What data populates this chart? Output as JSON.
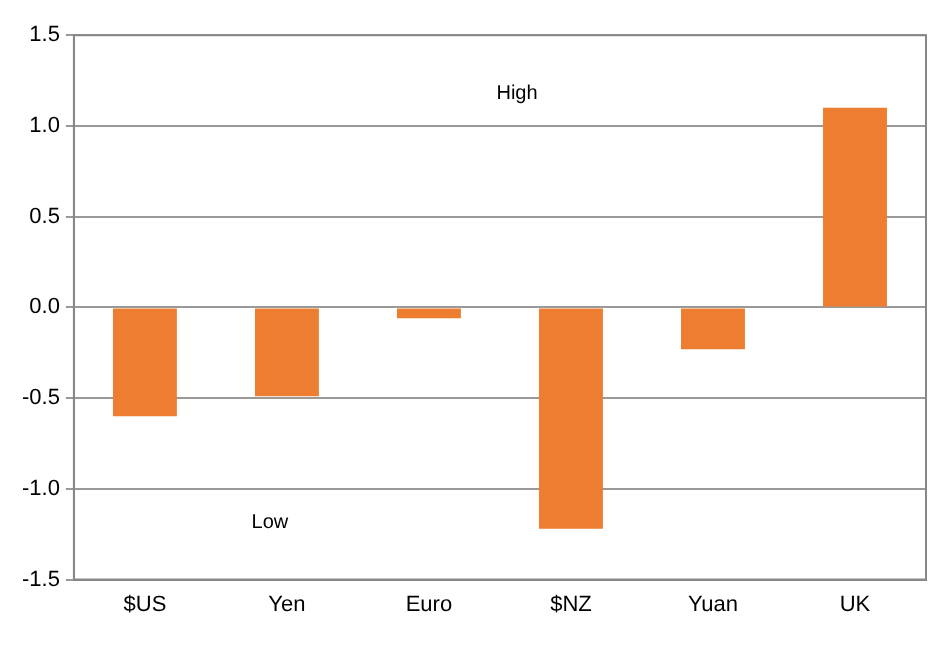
{
  "chart_data": {
    "type": "bar",
    "categories": [
      "$US",
      "Yen",
      "Euro",
      "$NZ",
      "Yuan",
      "UK"
    ],
    "values": [
      -0.6,
      -0.49,
      -0.06,
      -1.22,
      -0.23,
      1.1
    ],
    "color": "#ed7d31",
    "ylim": [
      -1.5,
      1.5
    ],
    "yticks": [
      {
        "value": -1.5,
        "label": "-1.5"
      },
      {
        "value": -1,
        "label": "-1.0"
      },
      {
        "value": -0.5,
        "label": "-0.5"
      },
      {
        "value": 0,
        "label": "0.0"
      },
      {
        "value": 0.5,
        "label": "0.5"
      },
      {
        "value": 1,
        "label": "1.0"
      },
      {
        "value": 1.5,
        "label": "1.5"
      }
    ],
    "grid": "y",
    "legend": false,
    "annotations": [
      "High",
      "Low"
    ]
  }
}
